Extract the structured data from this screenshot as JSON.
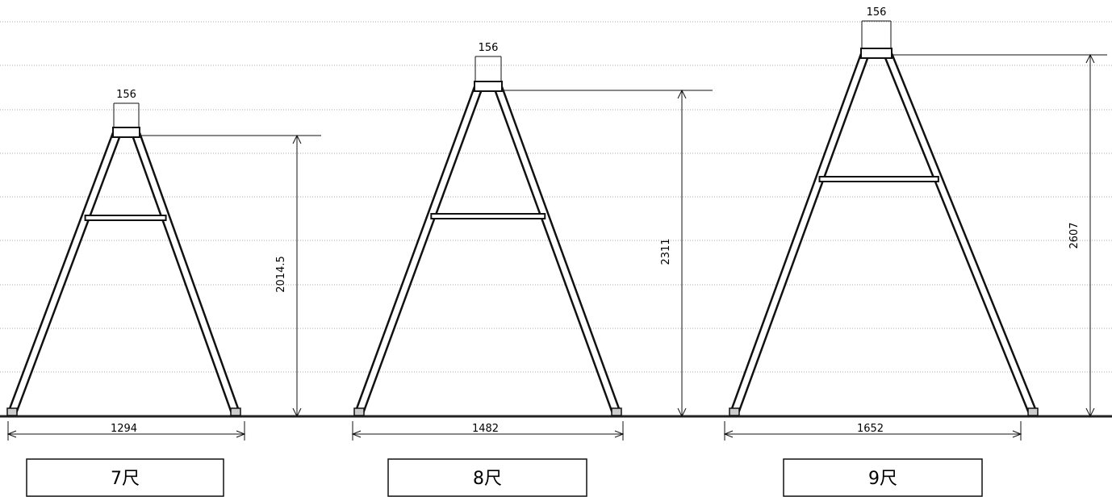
{
  "ladders": [
    {
      "top_width": 156,
      "height": 2014.5,
      "base_width": 1294,
      "label": "7尺"
    },
    {
      "top_width": 156,
      "height": 2311,
      "base_width": 1482,
      "label": "8尺"
    },
    {
      "top_width": 156,
      "height": 2607,
      "base_width": 1652,
      "label": "9尺"
    }
  ]
}
